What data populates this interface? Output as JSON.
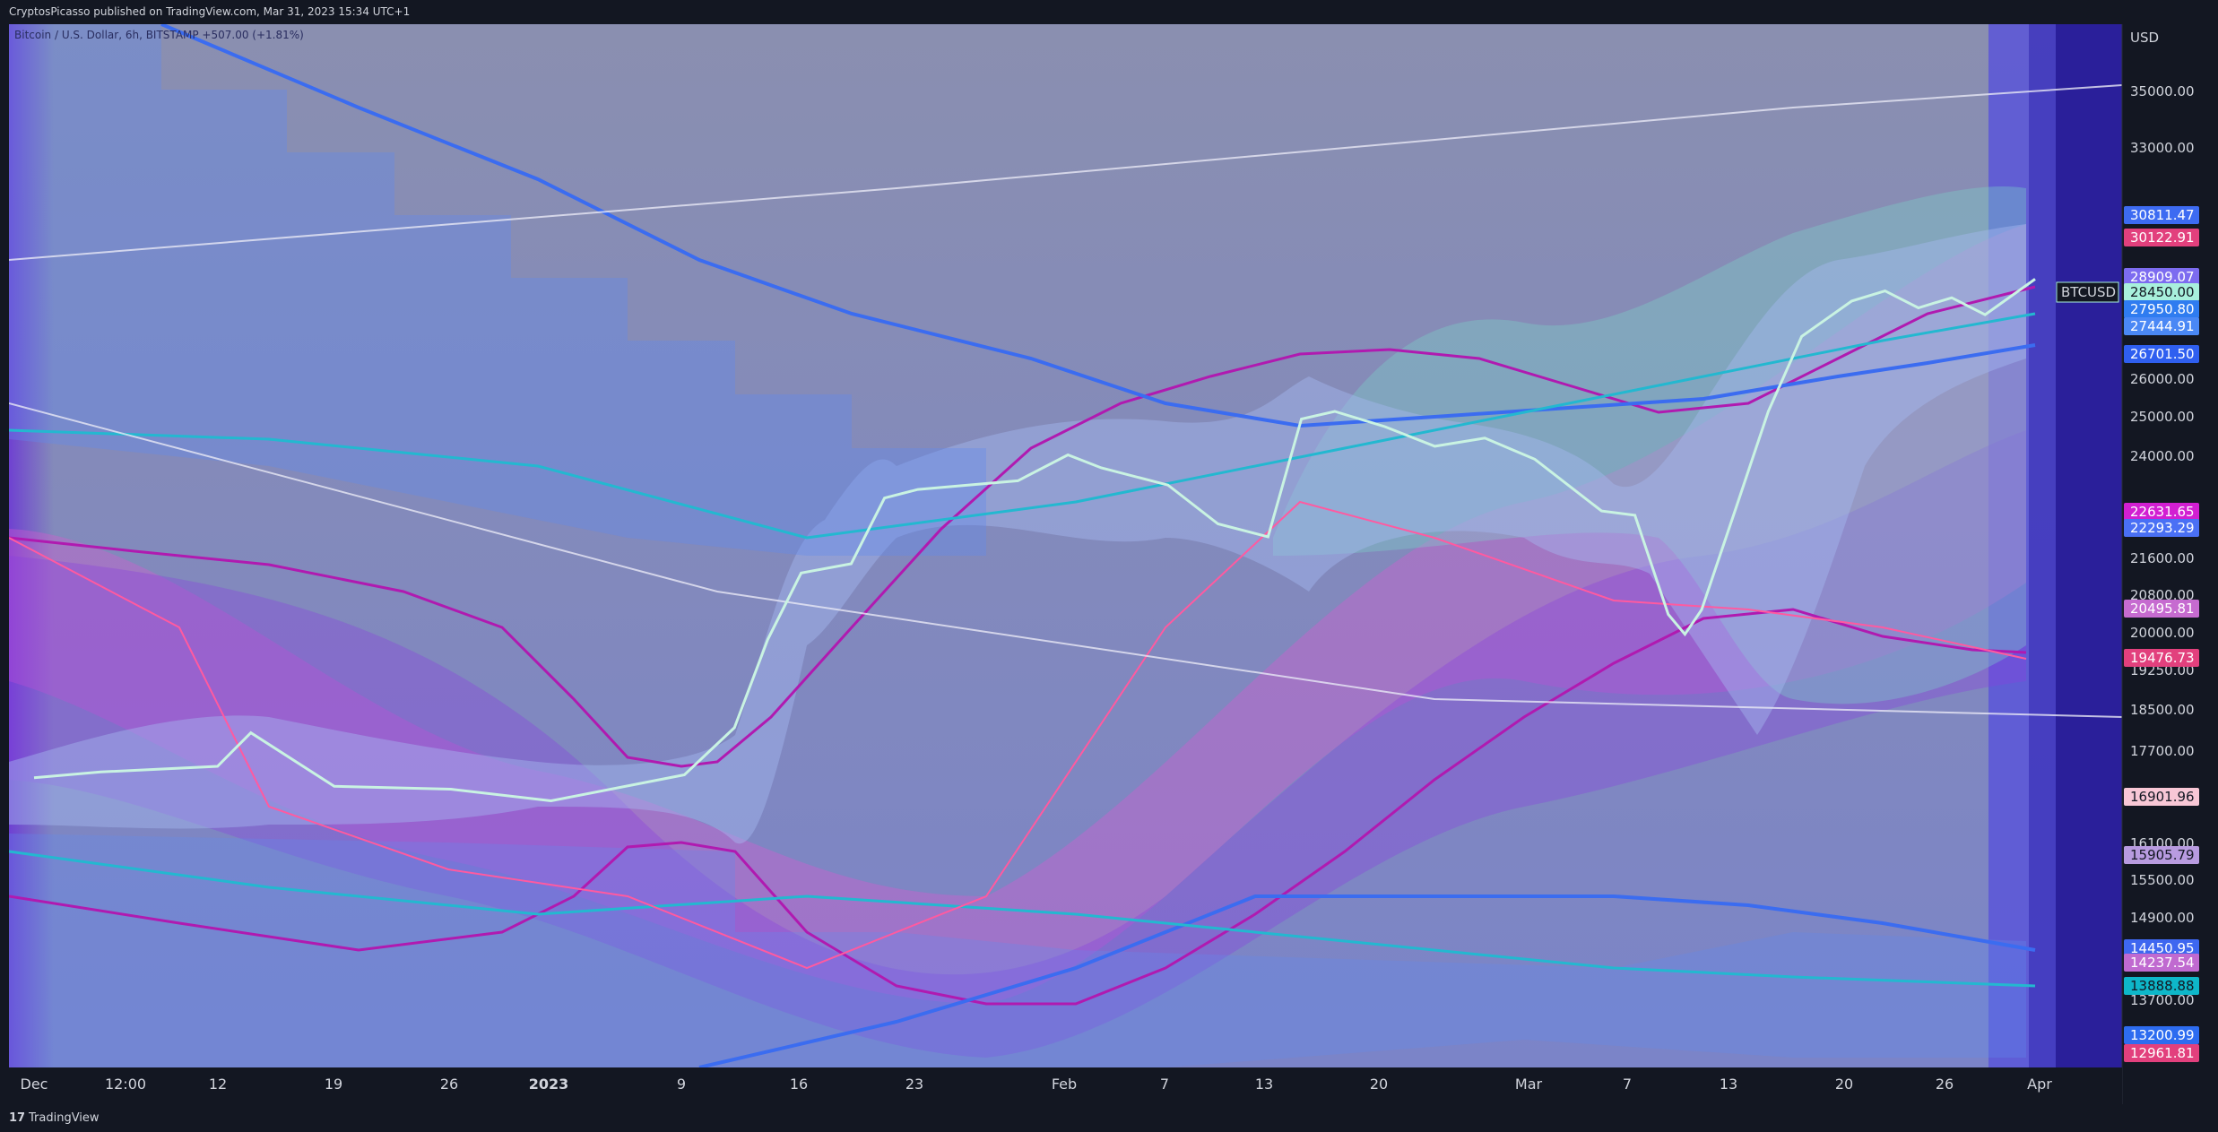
{
  "header": {
    "publisher_line": "CryptosPicasso published on TradingView.com, Mar 31, 2023 15:34 UTC+1"
  },
  "legend": {
    "symbol_line": "Bitcoin / U.S. Dollar, 6h, BITSTAMP  +507.00 (+1.81%)"
  },
  "footer": {
    "brand": "TradingView",
    "logo_glyph": "17"
  },
  "colors": {
    "background": "#131722",
    "plot_bg": "#8a8fb0",
    "price_line": "#c9f3e2",
    "magenta": "#b01ab0",
    "blue": "#3b6cf0",
    "pink": "#ff5aa0",
    "cyan": "#23b8d0"
  },
  "chart_data": {
    "type": "line",
    "currency_label": "USD",
    "symbol_tag": "BTCUSD",
    "x_ticks": [
      "Dec",
      "12:00",
      "12",
      "19",
      "26",
      "2023",
      "9",
      "16",
      "23",
      "Feb",
      "7",
      "13",
      "20",
      "Mar",
      "7",
      "13",
      "20",
      "26",
      "Apr"
    ],
    "y_ticks": [
      "35000.00",
      "33000.00",
      "26000.00",
      "25000.00",
      "24000.00",
      "21600.00",
      "20800.00",
      "20000.00",
      "19250.00",
      "18500.00",
      "17700.00",
      "16100.00",
      "15500.00",
      "14900.00",
      "13700.00"
    ],
    "price_labels": [
      {
        "text": "30811.47",
        "bg": "#3d6bf2",
        "fg": "#ffffff"
      },
      {
        "text": "30122.91",
        "bg": "#e2407d",
        "fg": "#ffffff"
      },
      {
        "text": "28909.07",
        "bg": "#7d6cf0",
        "fg": "#ffffff"
      },
      {
        "text": "28450.00",
        "bg": "#a8f0dc",
        "fg": "#131722"
      },
      {
        "text": "27950.80",
        "bg": "#2f7cf0",
        "fg": "#ffffff"
      },
      {
        "text": "27444.91",
        "bg": "#4a88f5",
        "fg": "#ffffff"
      },
      {
        "text": "26701.50",
        "bg": "#2f5ff0",
        "fg": "#ffffff"
      },
      {
        "text": "22631.65",
        "bg": "#d21fd2",
        "fg": "#ffffff"
      },
      {
        "text": "22293.29",
        "bg": "#4a70f5",
        "fg": "#ffffff"
      },
      {
        "text": "20495.81",
        "bg": "#c66bd0",
        "fg": "#ffffff"
      },
      {
        "text": "19476.73",
        "bg": "#e2407d",
        "fg": "#ffffff"
      },
      {
        "text": "16901.96",
        "bg": "#f8c7d6",
        "fg": "#131722"
      },
      {
        "text": "15905.79",
        "bg": "#b89be0",
        "fg": "#131722"
      },
      {
        "text": "14450.95",
        "bg": "#3e67f0",
        "fg": "#ffffff"
      },
      {
        "text": "14237.54",
        "bg": "#c06ad0",
        "fg": "#ffffff"
      },
      {
        "text": "13888.88",
        "bg": "#0eb7c9",
        "fg": "#131722"
      },
      {
        "text": "13200.99",
        "bg": "#2d6cf0",
        "fg": "#ffffff"
      },
      {
        "text": "12961.81",
        "bg": "#e2407d",
        "fg": "#ffffff"
      }
    ],
    "x": [
      "Dec 1",
      "Dec 5",
      "Dec 12",
      "Dec 14",
      "Dec 19",
      "Dec 26",
      "Jan 1",
      "Jan 9",
      "Jan 12",
      "Jan 14",
      "Jan 16",
      "Jan 19",
      "Jan 21",
      "Jan 23",
      "Jan 26",
      "Jan 29",
      "Feb 1",
      "Feb 3",
      "Feb 7",
      "Feb 10",
      "Feb 13",
      "Feb 15",
      "Feb 17",
      "Feb 20",
      "Feb 23",
      "Feb 26",
      "Mar 1",
      "Mar 5",
      "Mar 7",
      "Mar 9",
      "Mar 10",
      "Mar 11",
      "Mar 13",
      "Mar 15",
      "Mar 17",
      "Mar 20",
      "Mar 22",
      "Mar 24",
      "Mar 26",
      "Mar 28",
      "Mar 31"
    ],
    "series": [
      {
        "values": [
          17000,
          17100,
          17200,
          17800,
          16850,
          16800,
          16600,
          17050,
          17900,
          19600,
          21000,
          21200,
          22700,
          22900,
          23000,
          23100,
          23700,
          23400,
          23000,
          22100,
          21800,
          24600,
          24800,
          24400,
          23900,
          24100,
          23600,
          22400,
          22300,
          20100,
          19700,
          20200,
          22400,
          24800,
          26800,
          27800,
          28100,
          27600,
          27900,
          27400,
          28450
        ]
      }
    ]
  }
}
